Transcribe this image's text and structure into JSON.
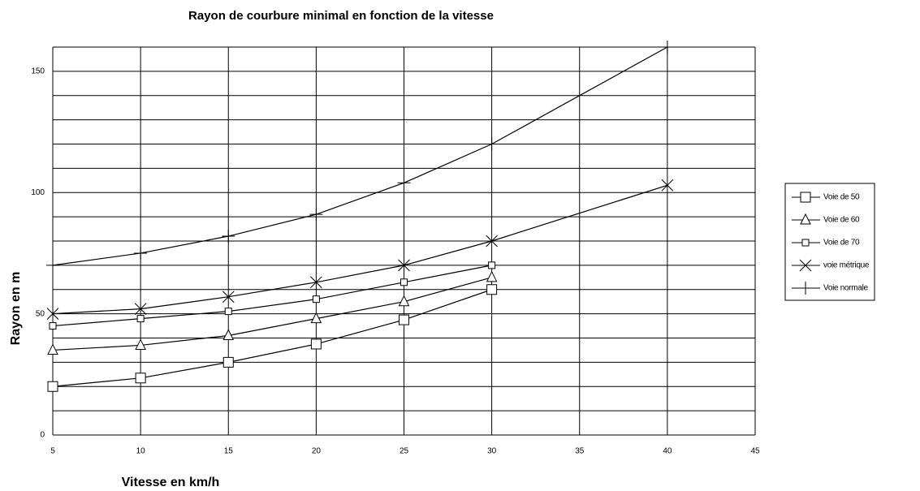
{
  "chart_data": {
    "type": "line",
    "title": "Rayon de courbure minimal en fonction de la vitesse",
    "xlabel": "Vitesse en km/h",
    "ylabel": "Rayon en m",
    "x": [
      5,
      10,
      15,
      20,
      25,
      30,
      40
    ],
    "series": [
      {
        "name": "Voie de 50",
        "color": "#000000",
        "marker": "square",
        "values": [
          20,
          23.5,
          30,
          37.5,
          47.5,
          60,
          null
        ]
      },
      {
        "name": "Voie de 60",
        "color": "#000000",
        "marker": "triangle",
        "values": [
          35,
          37,
          41,
          48,
          55,
          65,
          null
        ]
      },
      {
        "name": "Voie de 70",
        "color": "#000000",
        "marker": "small-square",
        "values": [
          45,
          48,
          51,
          56,
          63,
          70,
          null
        ]
      },
      {
        "name": "voie métrique",
        "color": "#000000",
        "marker": "cross",
        "values": [
          50,
          52,
          57,
          63,
          70,
          80,
          103
        ]
      },
      {
        "name": "Voie normale",
        "color": "#000000",
        "marker": "plus",
        "values": [
          70,
          75,
          82,
          91,
          104,
          120,
          160
        ]
      }
    ],
    "xlim": [
      5,
      45
    ],
    "xticks": [
      5,
      10,
      15,
      20,
      25,
      30,
      35,
      40,
      45
    ],
    "ylim": [
      0,
      160
    ],
    "yticks": [
      0,
      50,
      100,
      150
    ],
    "minor_yticks": [
      10,
      20,
      30,
      40,
      60,
      70,
      80,
      90,
      110,
      120,
      130,
      140,
      160
    ],
    "grid": true,
    "legend": "right"
  }
}
